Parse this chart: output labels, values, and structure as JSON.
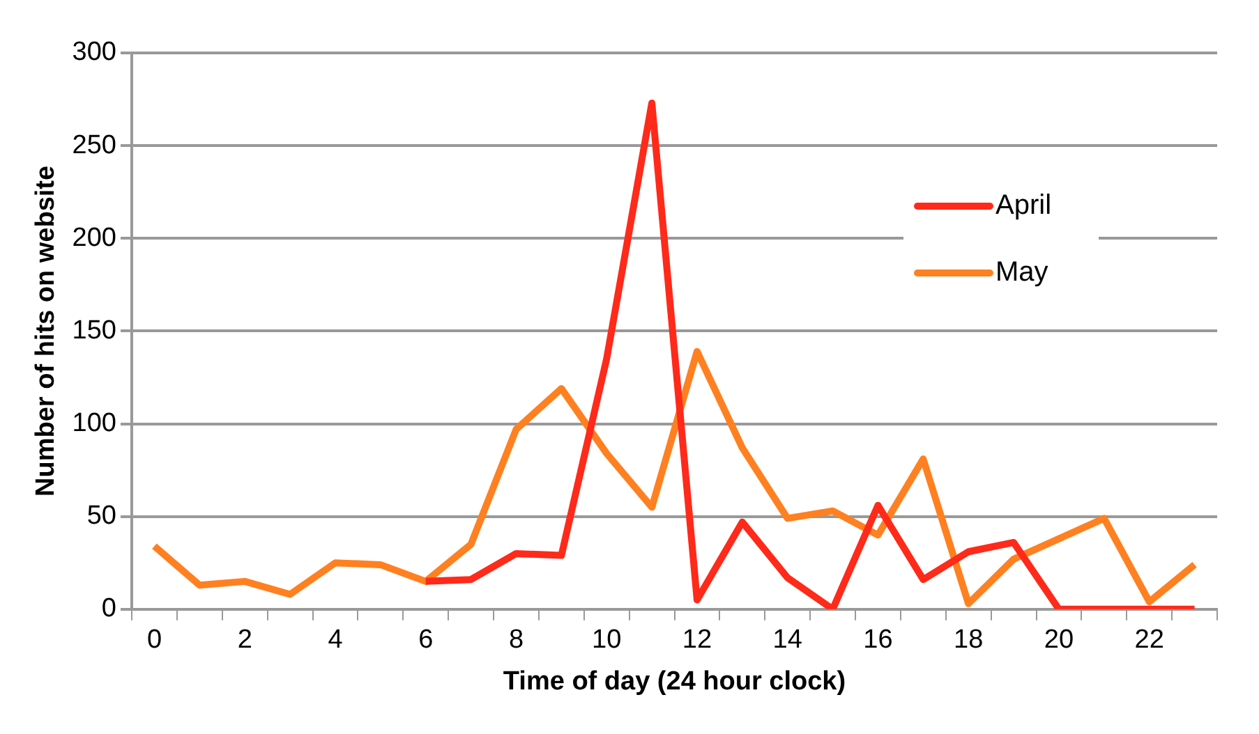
{
  "chart_data": {
    "type": "line",
    "xlabel": "Time of day (24 hour clock)",
    "ylabel": "Number of hits on website",
    "categories": [
      "0",
      null,
      "2",
      null,
      "4",
      null,
      "6",
      null,
      "8",
      null,
      "10",
      null,
      "12",
      null,
      "14",
      null,
      "16",
      null,
      "18",
      null,
      "20",
      null,
      "22",
      null
    ],
    "series": [
      {
        "name": "April",
        "color": "#ff2a1a",
        "values": [
          null,
          null,
          null,
          null,
          null,
          null,
          15,
          16,
          30,
          29,
          135,
          273,
          5,
          47,
          17,
          0,
          56,
          16,
          31,
          36,
          0,
          0,
          0,
          0
        ]
      },
      {
        "name": "May",
        "color": "#ff8020",
        "values": [
          34,
          13,
          15,
          8,
          25,
          24,
          15,
          35,
          97,
          119,
          84,
          55,
          139,
          87,
          49,
          53,
          40,
          81,
          3,
          27,
          38,
          49,
          4,
          24
        ]
      }
    ],
    "ylim": [
      0,
      300
    ],
    "yticks": [
      0,
      50,
      100,
      150,
      200,
      250,
      300
    ],
    "grid": "y",
    "legend": "right",
    "marker": "none",
    "line_style": "solid"
  }
}
